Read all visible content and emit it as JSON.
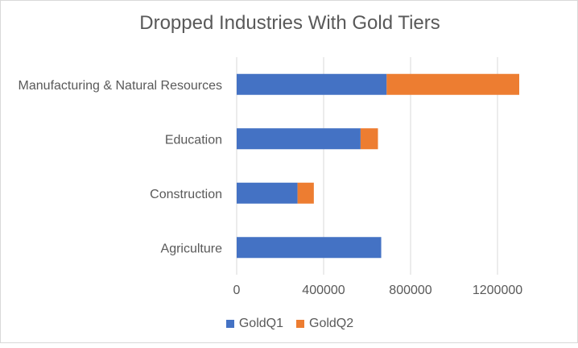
{
  "chart_data": {
    "type": "bar",
    "orientation": "horizontal",
    "stacked": true,
    "title": "Dropped Industries With Gold Tiers",
    "categories": [
      "Manufacturing & Natural Resources",
      "Education",
      "Construction",
      "Agriculture"
    ],
    "series": [
      {
        "name": "GoldQ1",
        "color": "#4472C4",
        "values": [
          690000,
          570000,
          280000,
          665000
        ]
      },
      {
        "name": "GoldQ2",
        "color": "#ED7D31",
        "values": [
          610000,
          80000,
          75000,
          0
        ]
      }
    ],
    "xlim": [
      0,
      1300000
    ],
    "xticks": [
      0,
      400000,
      800000,
      1200000
    ],
    "xtick_labels": [
      "0",
      "400000",
      "800000",
      "1200000"
    ],
    "grid": "vertical",
    "legend": "bottom"
  }
}
